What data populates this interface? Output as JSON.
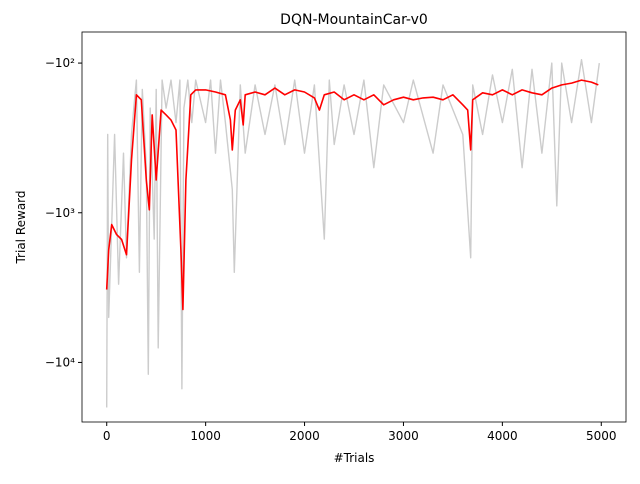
{
  "chart_data": {
    "type": "line",
    "title": "DQN-MountainCar-v0",
    "xlabel": "#Trials",
    "ylabel": "Trial Reward",
    "yscale": "symlog",
    "xlim": [
      -250,
      5250
    ],
    "xticks": [
      0,
      1000,
      2000,
      3000,
      4000,
      5000
    ],
    "ylim": [
      -25000,
      -62
    ],
    "yticks": [
      {
        "value": -100,
        "label": "−10²"
      },
      {
        "value": -1000,
        "label": "−10³"
      },
      {
        "value": -10000,
        "label": "−10⁴"
      }
    ],
    "series": [
      {
        "color": "#cccccc",
        "x": [
          0,
          10,
          20,
          50,
          80,
          120,
          170,
          200,
          250,
          280,
          300,
          330,
          360,
          400,
          420,
          440,
          480,
          500,
          520,
          560,
          600,
          650,
          700,
          740,
          760,
          780,
          820,
          860,
          900,
          1000,
          1050,
          1100,
          1150,
          1200,
          1270,
          1290,
          1350,
          1400,
          1500,
          1600,
          1700,
          1800,
          1900,
          2000,
          2100,
          2200,
          2250,
          2300,
          2400,
          2500,
          2600,
          2700,
          2800,
          3000,
          3100,
          3300,
          3400,
          3600,
          3680,
          3700,
          3800,
          3900,
          4000,
          4100,
          4200,
          4300,
          4400,
          4500,
          4550,
          4600,
          4700,
          4800,
          4900,
          4980
        ],
        "values": [
          -20000,
          -300,
          -5000,
          -1200,
          -300,
          -3000,
          -400,
          -2000,
          -300,
          -180,
          -130,
          -2500,
          -150,
          -500,
          -12000,
          -200,
          -1500,
          -150,
          -8000,
          -130,
          -200,
          -130,
          -250,
          -130,
          -15000,
          -200,
          -130,
          -250,
          -130,
          -250,
          -130,
          -400,
          -130,
          -250,
          -700,
          -2500,
          -140,
          -400,
          -140,
          -300,
          -140,
          -350,
          -130,
          -400,
          -140,
          -1500,
          -130,
          -350,
          -140,
          -300,
          -130,
          -500,
          -140,
          -250,
          -130,
          -400,
          -140,
          -300,
          -2000,
          -140,
          -300,
          -120,
          -250,
          -110,
          -500,
          -110,
          -400,
          -100,
          -900,
          -100,
          -250,
          -95,
          -250,
          -100
        ]
      },
      {
        "color": "#ff0000",
        "x": [
          0,
          20,
          50,
          100,
          150,
          200,
          250,
          300,
          350,
          400,
          430,
          460,
          500,
          550,
          600,
          650,
          700,
          750,
          770,
          800,
          850,
          900,
          1000,
          1100,
          1200,
          1250,
          1270,
          1300,
          1350,
          1380,
          1400,
          1500,
          1600,
          1700,
          1800,
          1900,
          2000,
          2100,
          2150,
          2200,
          2300,
          2400,
          2500,
          2600,
          2700,
          2800,
          2900,
          3000,
          3100,
          3200,
          3300,
          3400,
          3500,
          3600,
          3650,
          3680,
          3700,
          3800,
          3900,
          4000,
          4100,
          4200,
          4300,
          4400,
          4500,
          4600,
          4700,
          4800,
          4900,
          4970
        ],
        "values": [
          -3260,
          -1770,
          -1200,
          -1400,
          -1510,
          -1905,
          -443,
          -163,
          -176,
          -603,
          -955,
          -222,
          -603,
          -206,
          -222,
          -240,
          -280,
          -1770,
          -4430,
          -603,
          -163,
          -151,
          -151,
          -156,
          -163,
          -240,
          -380,
          -206,
          -176,
          -259,
          -163,
          -156,
          -163,
          -147,
          -163,
          -151,
          -156,
          -171,
          -206,
          -163,
          -156,
          -176,
          -163,
          -176,
          -163,
          -190,
          -176,
          -169,
          -176,
          -171,
          -169,
          -176,
          -163,
          -190,
          -206,
          -380,
          -176,
          -158,
          -163,
          -151,
          -163,
          -151,
          -158,
          -163,
          -147,
          -140,
          -136,
          -130,
          -134,
          -140
        ]
      }
    ]
  }
}
